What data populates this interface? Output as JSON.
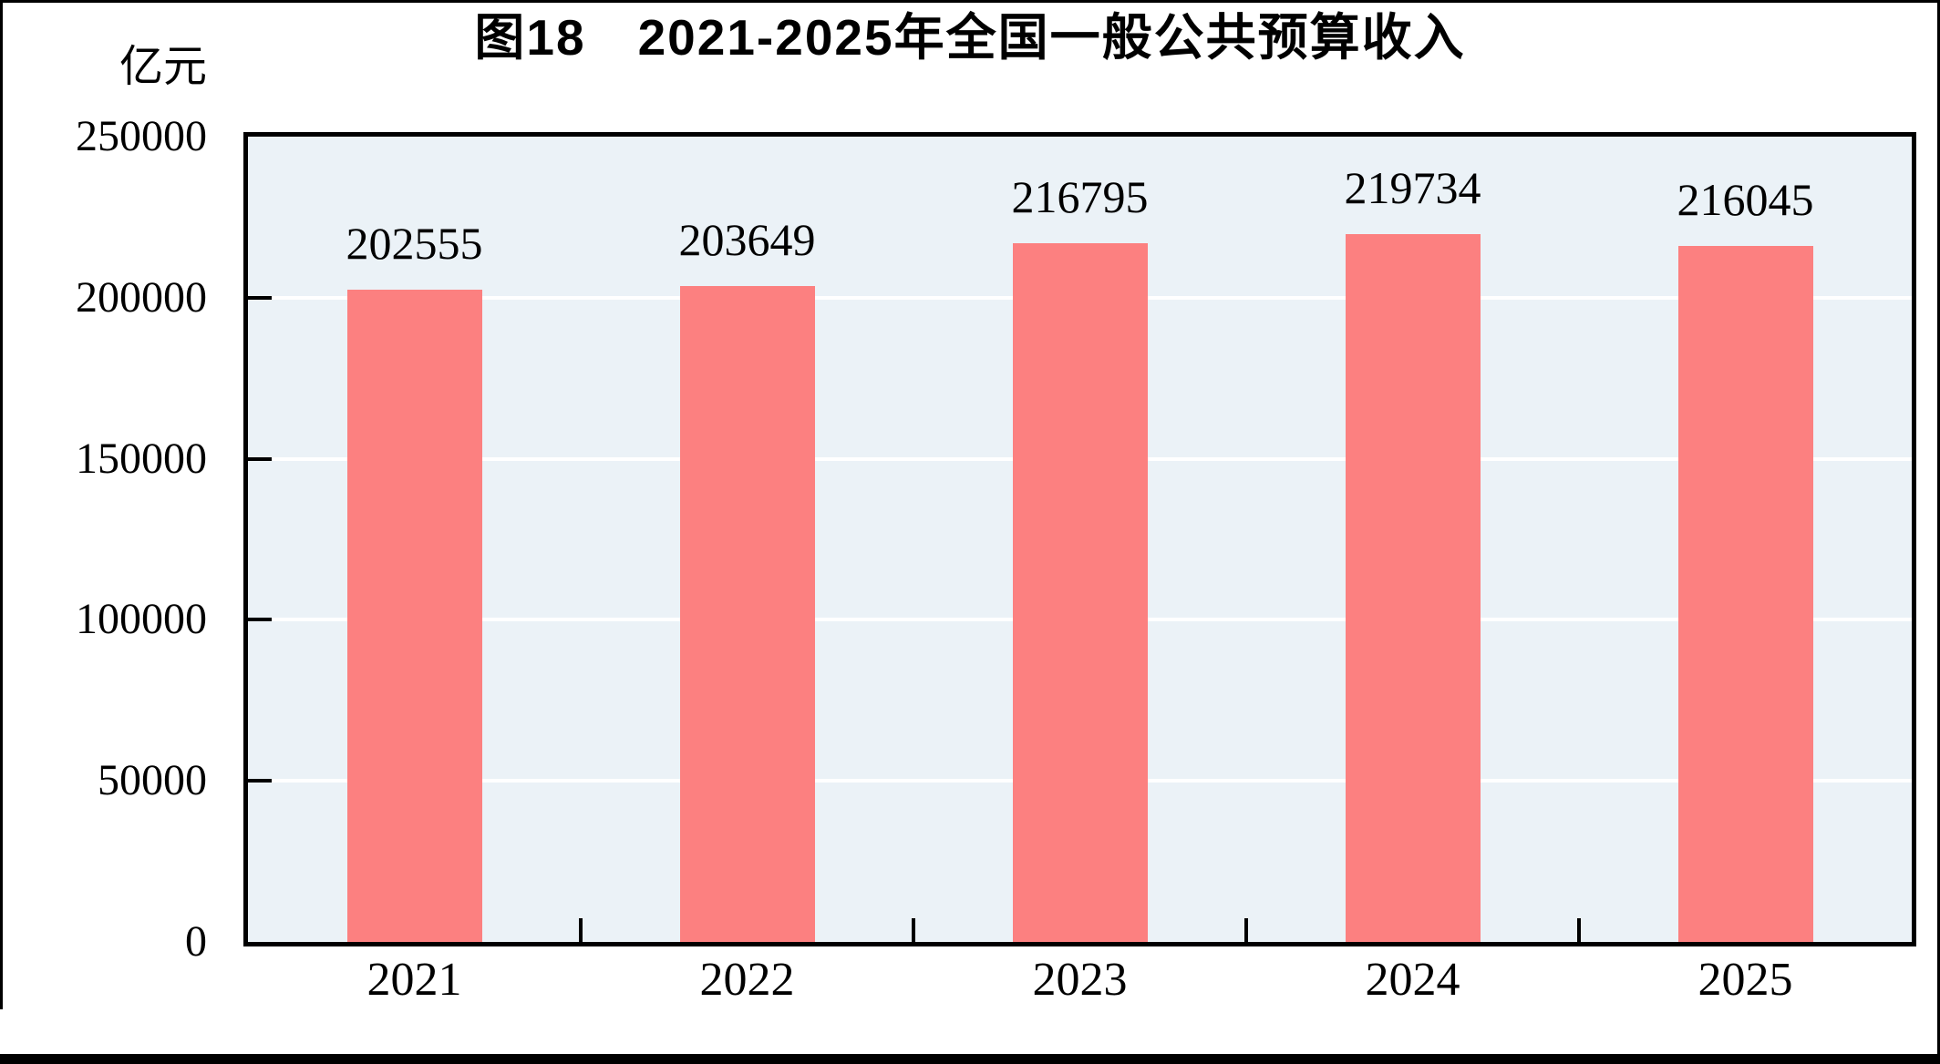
{
  "page": {
    "background": "#FFFFFF",
    "frame_color": "#000000"
  },
  "chart_data": {
    "type": "bar",
    "title": "图18　2021-2025年全国一般公共预算收入",
    "unit_label": "亿元",
    "categories": [
      "2021",
      "2022",
      "2023",
      "2024",
      "2025"
    ],
    "values": [
      202555,
      203649,
      216795,
      219734,
      216045
    ],
    "value_labels": [
      "202555",
      "203649",
      "216795",
      "219734",
      "216045"
    ],
    "xlabel": "",
    "ylabel": "亿元",
    "ylim": [
      0,
      250000
    ],
    "yticks": [
      0,
      50000,
      100000,
      150000,
      200000,
      250000
    ],
    "grid": true,
    "legend": "none",
    "bar_color": "#FC8080",
    "plot_background": "#EBF2F7",
    "gridline_color": "#FFFFFF",
    "axis_color": "#000000",
    "text_color": "#000000"
  }
}
